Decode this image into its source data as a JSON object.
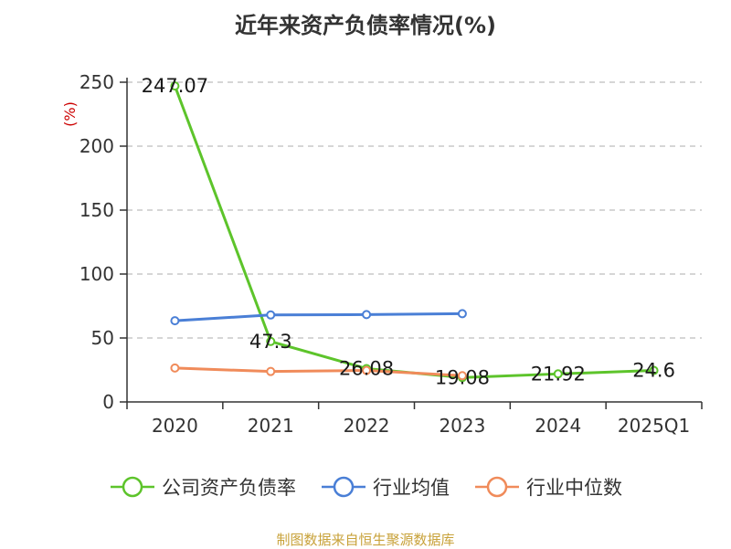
{
  "chart_data": {
    "type": "line",
    "title": "近年来资产负债率情况(%)",
    "ylabel": "(%)",
    "xlabel": "",
    "categories": [
      "2020",
      "2021",
      "2022",
      "2023",
      "2024",
      "2025Q1"
    ],
    "ylim": [
      0,
      250
    ],
    "yticks": [
      0,
      50,
      100,
      150,
      200,
      250
    ],
    "grid": true,
    "legend_position": "bottom",
    "series": [
      {
        "name": "公司资产负债率",
        "color": "#5dc42b",
        "values": [
          247.07,
          47.3,
          26.08,
          19.08,
          21.92,
          24.6
        ],
        "labels": [
          "247.07",
          "47.3",
          "26.08",
          "19.08",
          "21.92",
          "24.6"
        ]
      },
      {
        "name": "行业均值",
        "color": "#4a7fd6",
        "values": [
          63.5,
          68,
          68.3,
          69,
          null,
          null
        ]
      },
      {
        "name": "行业中位数",
        "color": "#f08b5a",
        "values": [
          26.5,
          23.8,
          24.6,
          20.5,
          null,
          null
        ]
      }
    ]
  },
  "source": "制图数据来自恒生聚源数据库"
}
